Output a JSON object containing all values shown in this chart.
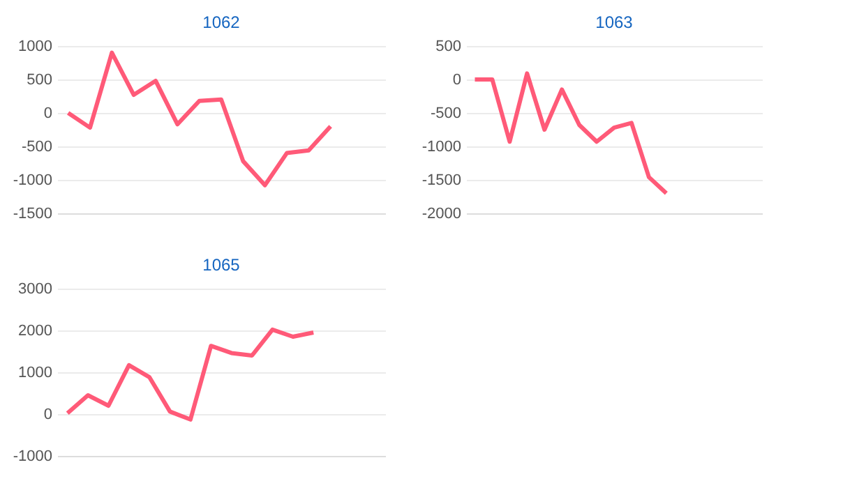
{
  "chart_data": [
    {
      "type": "line",
      "title": "1062",
      "categories": [
        null,
        null,
        null,
        null,
        null,
        null,
        null,
        null,
        null,
        null,
        null,
        null,
        null,
        null,
        null
      ],
      "series": [
        {
          "color": "#ff5a78",
          "values": [
            0,
            -220,
            900,
            270,
            480,
            -170,
            180,
            200,
            -720,
            -1080,
            -600,
            -560,
            -200,
            null,
            null
          ]
        }
      ],
      "ylim": [
        -1500,
        1000
      ],
      "yticks": [
        -1500,
        -1000,
        -500,
        0,
        500,
        1000
      ],
      "grid": "y",
      "tick_labels": "y"
    },
    {
      "type": "line",
      "title": "1063",
      "categories": [
        null,
        null,
        null,
        null,
        null,
        null,
        null,
        null,
        null,
        null,
        null,
        null,
        null,
        null,
        null,
        null,
        null
      ],
      "series": [
        {
          "color": "#ff5a78",
          "values": [
            0,
            0,
            -930,
            90,
            -750,
            -150,
            -680,
            -930,
            -720,
            -650,
            -1460,
            -1700,
            null,
            null,
            null,
            null,
            null
          ]
        }
      ],
      "ylim": [
        -2000,
        500
      ],
      "yticks": [
        -2000,
        -1500,
        -1000,
        -500,
        0,
        500
      ],
      "grid": "y",
      "tick_labels": "y"
    },
    {
      "type": "line",
      "title": "1065",
      "categories": [
        null,
        null,
        null,
        null,
        null,
        null,
        null,
        null,
        null,
        null,
        null,
        null,
        null,
        null,
        null,
        null
      ],
      "series": [
        {
          "color": "#ff5a78",
          "values": [
            20,
            450,
            200,
            1170,
            880,
            60,
            -130,
            1630,
            1460,
            1400,
            2020,
            1850,
            1950,
            null,
            null,
            null
          ]
        }
      ],
      "ylim": [
        -1000,
        3000
      ],
      "yticks": [
        -1000,
        0,
        1000,
        2000,
        3000
      ],
      "grid": "y",
      "tick_labels": "y"
    }
  ]
}
